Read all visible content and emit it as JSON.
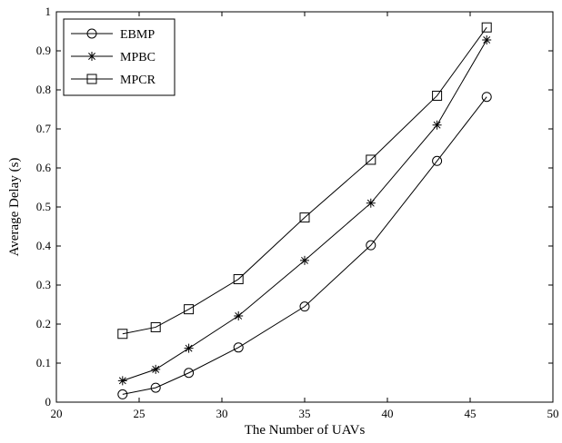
{
  "chart_data": {
    "type": "line",
    "xlabel": "The Number of UAVs",
    "ylabel": "Average Delay (s)",
    "xlim": [
      20,
      50
    ],
    "ylim": [
      0,
      1
    ],
    "xticks": [
      20,
      25,
      30,
      35,
      40,
      45,
      50
    ],
    "yticks": [
      0,
      0.1,
      0.2,
      0.3,
      0.4,
      0.5,
      0.6,
      0.7,
      0.8,
      0.9,
      1
    ],
    "grid": false,
    "legend_position": "top-left",
    "x": [
      24,
      26,
      28,
      31,
      35,
      39,
      43,
      46
    ],
    "series": [
      {
        "name": "EBMP",
        "marker": "circle",
        "values": [
          0.02,
          0.037,
          0.075,
          0.14,
          0.245,
          0.402,
          0.618,
          0.782
        ]
      },
      {
        "name": "MPBC",
        "marker": "star",
        "values": [
          0.055,
          0.084,
          0.138,
          0.221,
          0.363,
          0.51,
          0.71,
          0.928
        ]
      },
      {
        "name": "MPCR",
        "marker": "square",
        "values": [
          0.175,
          0.192,
          0.238,
          0.315,
          0.473,
          0.621,
          0.785,
          0.96
        ]
      }
    ],
    "line_color": "#000000"
  }
}
